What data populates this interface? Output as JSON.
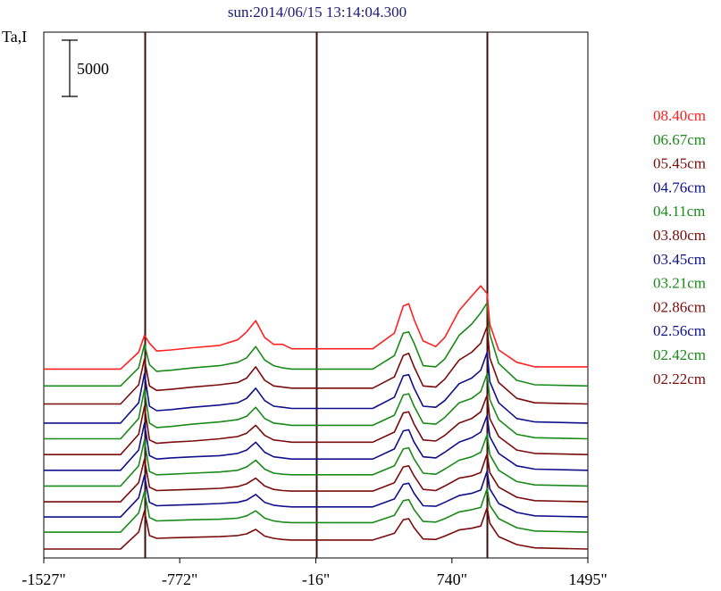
{
  "chart_data": {
    "type": "line",
    "title": "sun:2014/06/15 13:14:04.300",
    "ylabel": "Ta,I",
    "xlabel": "",
    "scale_bar": {
      "value": 5000,
      "label": "5000"
    },
    "xlim": [
      -1527,
      1495
    ],
    "x_ticks": [
      {
        "value": -1527,
        "label": "-1527\""
      },
      {
        "value": -772,
        "label": "-772\""
      },
      {
        "value": -16,
        "label": "-16\""
      },
      {
        "value": 740,
        "label": "740\""
      },
      {
        "value": 1495,
        "label": "1495\""
      }
    ],
    "vertical_markers": [
      -968,
      -16,
      936
    ],
    "grid": false,
    "legend_position": "right",
    "x": [
      -1527,
      -1100,
      -1000,
      -968,
      -940,
      -900,
      -820,
      -700,
      -550,
      -450,
      -400,
      -350,
      -300,
      -250,
      -200,
      -150,
      -100,
      -50,
      -16,
      0,
      150,
      300,
      420,
      470,
      500,
      530,
      580,
      650,
      700,
      780,
      850,
      900,
      936,
      950,
      1000,
      1100,
      1200,
      1495
    ],
    "series": [
      {
        "name": "08.40cm",
        "color": "#ff2020",
        "offset": 16000,
        "values": [
          0,
          0,
          1500,
          3000,
          2300,
          1600,
          1700,
          1900,
          2100,
          2600,
          3300,
          4300,
          2800,
          2200,
          2200,
          1800,
          1800,
          1800,
          1800,
          1800,
          1800,
          1800,
          3200,
          5600,
          5800,
          4400,
          2500,
          2000,
          2800,
          5200,
          6500,
          7400,
          6700,
          4000,
          1700,
          600,
          200,
          200
        ]
      },
      {
        "name": "06.67cm",
        "color": "#1a8a1a",
        "offset": 14500,
        "values": [
          0,
          0,
          1600,
          3700,
          1900,
          1300,
          1400,
          1600,
          1800,
          2100,
          2500,
          3500,
          2300,
          1800,
          1600,
          1500,
          1500,
          1500,
          1500,
          1500,
          1500,
          1500,
          2700,
          4700,
          4800,
          3800,
          1800,
          1700,
          2400,
          4500,
          5500,
          6500,
          7400,
          4600,
          2000,
          500,
          100,
          0
        ]
      },
      {
        "name": "05.45cm",
        "color": "#7a0c0c",
        "offset": 12900,
        "values": [
          0,
          0,
          1700,
          4000,
          1600,
          1200,
          1300,
          1500,
          1700,
          1900,
          2300,
          3300,
          2100,
          1600,
          1500,
          1400,
          1400,
          1400,
          1400,
          1400,
          1400,
          1400,
          2400,
          4300,
          4500,
          3300,
          1600,
          1500,
          2200,
          3900,
          4600,
          5400,
          6900,
          4100,
          1900,
          500,
          100,
          0
        ]
      },
      {
        "name": "04.76cm",
        "color": "#10108a",
        "offset": 11200,
        "values": [
          0,
          0,
          1800,
          4400,
          1500,
          1100,
          1200,
          1400,
          1600,
          1800,
          2200,
          3100,
          2000,
          1500,
          1400,
          1300,
          1300,
          1300,
          1300,
          1300,
          1300,
          1300,
          2300,
          4200,
          4300,
          3100,
          1500,
          1400,
          2000,
          3500,
          4000,
          4700,
          6300,
          3700,
          1800,
          400,
          100,
          0
        ]
      },
      {
        "name": "04.11cm",
        "color": "#1a8a1a",
        "offset": 9800,
        "values": [
          0,
          0,
          1800,
          4400,
          1400,
          1000,
          1100,
          1300,
          1500,
          1700,
          2000,
          2800,
          1800,
          1400,
          1300,
          1200,
          1200,
          1200,
          1200,
          1200,
          1200,
          1200,
          2100,
          3900,
          4000,
          2900,
          1400,
          1300,
          1900,
          3200,
          3600,
          4200,
          5800,
          3500,
          1700,
          400,
          100,
          0
        ]
      },
      {
        "name": "03.80cm",
        "color": "#7a0c0c",
        "offset": 8400,
        "values": [
          0,
          0,
          1800,
          4300,
          1300,
          1000,
          1100,
          1200,
          1400,
          1600,
          1900,
          2600,
          1700,
          1300,
          1200,
          1100,
          1100,
          1100,
          1100,
          1100,
          1100,
          1100,
          2000,
          3700,
          3800,
          2700,
          1300,
          1200,
          1700,
          2800,
          3200,
          3800,
          5300,
          3200,
          1600,
          400,
          100,
          0
        ]
      },
      {
        "name": "03.45cm",
        "color": "#10108a",
        "offset": 7000,
        "values": [
          0,
          0,
          1800,
          4200,
          1300,
          1000,
          1100,
          1200,
          1300,
          1500,
          1800,
          2500,
          1600,
          1200,
          1100,
          1000,
          1000,
          1000,
          1000,
          1000,
          1000,
          1000,
          1900,
          3500,
          3600,
          2500,
          1200,
          1100,
          1600,
          2500,
          2900,
          3400,
          4900,
          3000,
          1500,
          400,
          100,
          0
        ]
      },
      {
        "name": "03.21cm",
        "color": "#1a8a1a",
        "offset": 5600,
        "values": [
          0,
          0,
          1800,
          4100,
          1300,
          1000,
          1050,
          1150,
          1250,
          1400,
          1700,
          2300,
          1500,
          1150,
          1050,
          1000,
          1000,
          1000,
          1000,
          1000,
          1000,
          1000,
          1800,
          3300,
          3400,
          2400,
          1150,
          1050,
          1500,
          2300,
          2600,
          3000,
          4600,
          2800,
          1400,
          400,
          100,
          0
        ]
      },
      {
        "name": "02.86cm",
        "color": "#7a0c0c",
        "offset": 4200,
        "values": [
          0,
          0,
          1700,
          3800,
          1300,
          1000,
          1050,
          1100,
          1200,
          1350,
          1600,
          2100,
          1400,
          1100,
          1000,
          950,
          950,
          950,
          950,
          950,
          950,
          950,
          1700,
          3100,
          3200,
          2300,
          1100,
          1000,
          1400,
          2100,
          2300,
          2600,
          4300,
          2600,
          1300,
          400,
          100,
          0
        ]
      },
      {
        "name": "02.56cm",
        "color": "#10108a",
        "offset": 2850,
        "values": [
          0,
          0,
          1700,
          3700,
          1300,
          1000,
          1050,
          1100,
          1200,
          1300,
          1500,
          2000,
          1300,
          1050,
          950,
          900,
          900,
          900,
          900,
          900,
          900,
          900,
          1600,
          2900,
          3000,
          2100,
          1000,
          950,
          1300,
          1900,
          2100,
          2400,
          4100,
          2500,
          1200,
          400,
          100,
          0
        ]
      },
      {
        "name": "02.42cm",
        "color": "#1a8a1a",
        "offset": 1500,
        "values": [
          0,
          0,
          1700,
          3600,
          1300,
          1000,
          1050,
          1100,
          1150,
          1250,
          1450,
          1900,
          1250,
          1000,
          900,
          850,
          850,
          850,
          850,
          850,
          850,
          850,
          1500,
          2800,
          2900,
          2000,
          950,
          900,
          1200,
          1800,
          2000,
          2200,
          3900,
          2400,
          1200,
          400,
          100,
          0
        ]
      },
      {
        "name": "02.22cm",
        "color": "#7a0c0c",
        "offset": 0,
        "values": [
          0,
          0,
          1500,
          3400,
          1200,
          950,
          1000,
          1050,
          1100,
          1200,
          1350,
          1750,
          1150,
          950,
          850,
          800,
          800,
          800,
          800,
          800,
          800,
          800,
          1400,
          2600,
          2700,
          1900,
          900,
          850,
          1150,
          1700,
          1850,
          2050,
          3700,
          2300,
          1100,
          400,
          100,
          0
        ]
      }
    ]
  }
}
